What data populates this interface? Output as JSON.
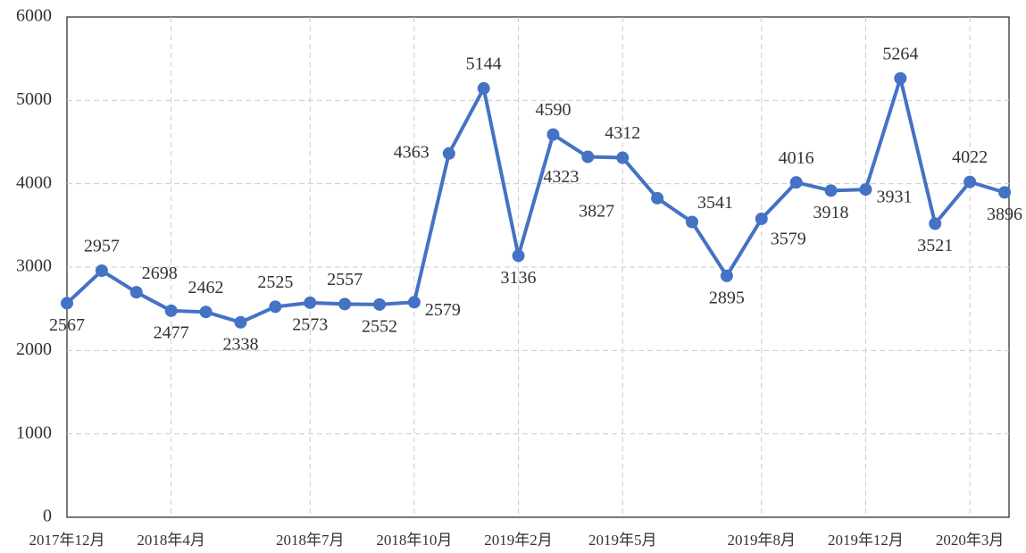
{
  "chart_data": {
    "type": "line",
    "categories": [
      "2017年12月",
      null,
      null,
      "2018年4月",
      null,
      null,
      null,
      "2018年7月",
      null,
      null,
      "2018年10月",
      null,
      null,
      "2019年2月",
      null,
      null,
      "2019年5月",
      null,
      null,
      null,
      "2019年8月",
      null,
      null,
      "2019年12月",
      null,
      null,
      "2020年3月",
      null
    ],
    "series": [
      {
        "color": "#4472c4",
        "values": [
          2567,
          2957,
          2698,
          2477,
          2462,
          2338,
          2525,
          2573,
          2557,
          2552,
          2579,
          4363,
          5144,
          3136,
          4590,
          4323,
          4312,
          3827,
          3541,
          2895,
          3579,
          4016,
          3918,
          3931,
          5264,
          3521,
          4022,
          3896
        ]
      }
    ],
    "ylim": [
      0,
      6000
    ],
    "yticks": [
      0,
      1000,
      2000,
      3000,
      4000,
      5000,
      6000
    ],
    "grid": true
  }
}
